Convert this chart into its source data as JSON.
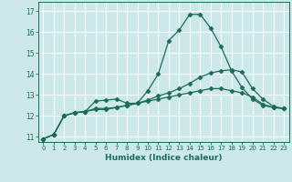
{
  "xlabel": "Humidex (Indice chaleur)",
  "background_color": "#cce8e8",
  "grid_color": "#ffffff",
  "line_color": "#1a6b5a",
  "xlim": [
    -0.5,
    23.5
  ],
  "ylim": [
    10.75,
    17.45
  ],
  "xticks": [
    0,
    1,
    2,
    3,
    4,
    5,
    6,
    7,
    8,
    9,
    10,
    11,
    12,
    13,
    14,
    15,
    16,
    17,
    18,
    19,
    20,
    21,
    22,
    23
  ],
  "yticks": [
    11,
    12,
    13,
    14,
    15,
    16,
    17
  ],
  "line1": [
    10.9,
    11.1,
    12.0,
    12.15,
    12.2,
    12.7,
    12.75,
    12.8,
    12.6,
    12.6,
    13.2,
    14.0,
    15.6,
    16.1,
    16.85,
    16.85,
    16.2,
    15.3,
    14.15,
    13.35,
    12.8,
    12.5,
    12.4,
    12.35
  ],
  "line2": [
    10.9,
    11.1,
    12.0,
    12.15,
    12.2,
    12.35,
    12.35,
    12.4,
    12.5,
    12.6,
    12.75,
    12.95,
    13.1,
    13.3,
    13.55,
    13.85,
    14.05,
    14.15,
    14.2,
    14.1,
    13.3,
    12.8,
    12.45,
    12.35
  ],
  "line3": [
    10.9,
    11.1,
    12.0,
    12.15,
    12.2,
    12.3,
    12.3,
    12.4,
    12.5,
    12.6,
    12.7,
    12.8,
    12.9,
    13.0,
    13.1,
    13.2,
    13.3,
    13.3,
    13.2,
    13.1,
    12.9,
    12.55,
    12.4,
    12.35
  ]
}
